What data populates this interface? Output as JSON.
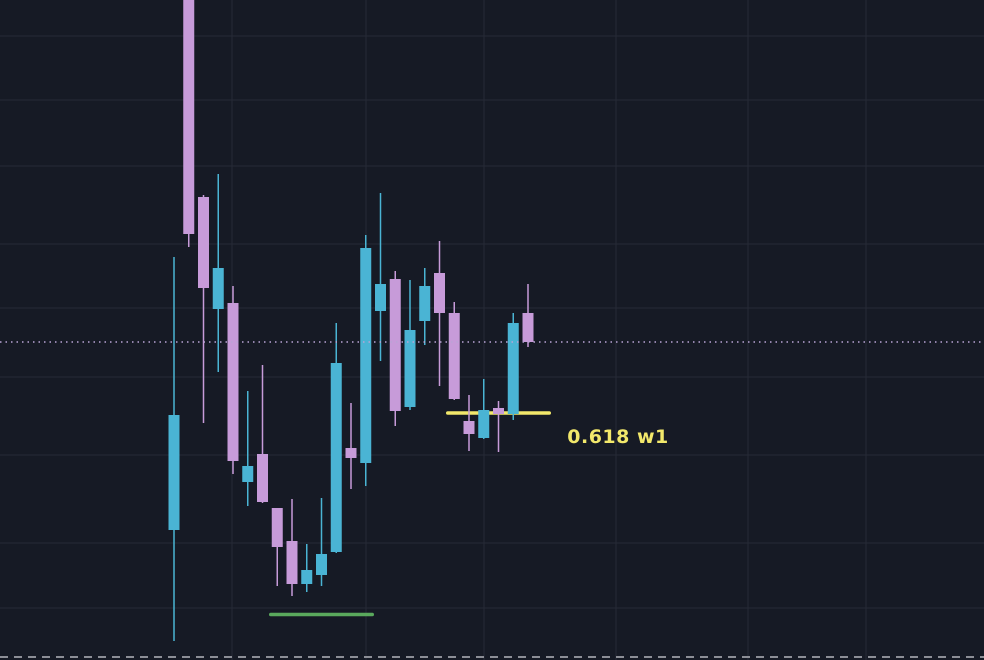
{
  "chart_data": {
    "type": "candlestick",
    "ylim": [
      0,
      66
    ],
    "grid": true,
    "colors": {
      "background": "#161a25",
      "grid": "#262a36",
      "up": "#4ab4d4",
      "down": "#c79bd9",
      "current_price_line": "#b9a4d6",
      "fib_level": "#f2e86b",
      "support_level": "#5aa95d",
      "bottom_dash": "#8d8f97"
    },
    "candles": [
      {
        "open": 13.0,
        "high": 40.3,
        "low": 1.9,
        "close": 24.5
      },
      {
        "open": 68.0,
        "high": 69.0,
        "low": 41.3,
        "close": 42.6
      },
      {
        "open": 46.3,
        "high": 46.5,
        "low": 23.7,
        "close": 37.2
      },
      {
        "open": 35.1,
        "high": 48.6,
        "low": 28.8,
        "close": 39.2
      },
      {
        "open": 35.7,
        "high": 37.4,
        "low": 18.6,
        "close": 19.9
      },
      {
        "open": 17.8,
        "high": 26.9,
        "low": 15.4,
        "close": 19.4
      },
      {
        "open": 20.6,
        "high": 29.5,
        "low": 15.7,
        "close": 15.8
      },
      {
        "open": 15.2,
        "high": 15.2,
        "low": 7.4,
        "close": 11.3
      },
      {
        "open": 11.9,
        "high": 16.1,
        "low": 6.4,
        "close": 7.6
      },
      {
        "open": 7.6,
        "high": 11.6,
        "low": 6.8,
        "close": 9.0
      },
      {
        "open": 8.5,
        "high": 16.2,
        "low": 7.4,
        "close": 10.6
      },
      {
        "open": 10.8,
        "high": 33.7,
        "low": 10.7,
        "close": 29.7
      },
      {
        "open": 21.2,
        "high": 25.7,
        "low": 17.1,
        "close": 20.2
      },
      {
        "open": 19.7,
        "high": 42.5,
        "low": 17.4,
        "close": 41.2
      },
      {
        "open": 34.9,
        "high": 46.7,
        "low": 29.9,
        "close": 37.6
      },
      {
        "open": 38.1,
        "high": 38.9,
        "low": 23.4,
        "close": 24.9
      },
      {
        "open": 25.3,
        "high": 38.0,
        "low": 25.0,
        "close": 33.0
      },
      {
        "open": 33.9,
        "high": 39.2,
        "low": 31.5,
        "close": 37.4
      },
      {
        "open": 38.7,
        "high": 41.9,
        "low": 27.4,
        "close": 34.7
      },
      {
        "open": 34.7,
        "high": 35.8,
        "low": 26.0,
        "close": 26.1
      },
      {
        "open": 23.9,
        "high": 26.5,
        "low": 20.9,
        "close": 22.6
      },
      {
        "open": 22.2,
        "high": 28.1,
        "low": 22.1,
        "close": 25.0
      },
      {
        "open": 25.2,
        "high": 25.9,
        "low": 20.8,
        "close": 24.6
      },
      {
        "open": 24.6,
        "high": 34.7,
        "low": 24.0,
        "close": 33.7
      },
      {
        "open": 34.7,
        "high": 37.6,
        "low": 31.3,
        "close": 31.8
      }
    ],
    "price_line": {
      "value": 31.8
    },
    "levels": [
      {
        "label": "0.618 w1",
        "value": 24.7,
        "from": 19,
        "to": 25,
        "color_key": "fib_level"
      },
      {
        "label": "",
        "value": 4.55,
        "from": 7,
        "to": 13,
        "color_key": "support_level"
      }
    ]
  }
}
